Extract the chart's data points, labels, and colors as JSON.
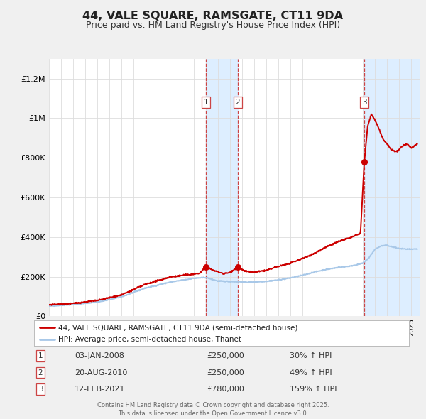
{
  "title": "44, VALE SQUARE, RAMSGATE, CT11 9DA",
  "subtitle": "Price paid vs. HM Land Registry's House Price Index (HPI)",
  "title_fontsize": 11.5,
  "subtitle_fontsize": 9,
  "y_max": 1300000,
  "yticks": [
    0,
    200000,
    400000,
    600000,
    800000,
    1000000,
    1200000
  ],
  "ytick_labels": [
    "£0",
    "£200K",
    "£400K",
    "£600K",
    "£800K",
    "£1M",
    "£1.2M"
  ],
  "hpi_color": "#a8c8e8",
  "price_color": "#cc0000",
  "vline_color": "#cc4444",
  "shade_color": "#ddeeff",
  "transaction1_date": 2008.01,
  "transaction1_price": 250000,
  "transaction2_date": 2010.64,
  "transaction2_price": 250000,
  "transaction3_date": 2021.12,
  "transaction3_price": 780000,
  "legend1_label": "44, VALE SQUARE, RAMSGATE, CT11 9DA (semi-detached house)",
  "legend2_label": "HPI: Average price, semi-detached house, Thanet",
  "annotation1": [
    "1",
    "03-JAN-2008",
    "£250,000",
    "30% ↑ HPI"
  ],
  "annotation2": [
    "2",
    "20-AUG-2010",
    "£250,000",
    "49% ↑ HPI"
  ],
  "annotation3": [
    "3",
    "12-FEB-2021",
    "£780,000",
    "159% ↑ HPI"
  ],
  "footer": "Contains HM Land Registry data © Crown copyright and database right 2025.\nThis data is licensed under the Open Government Licence v3.0.",
  "background_color": "#f0f0f0",
  "plot_bg_color": "#ffffff"
}
